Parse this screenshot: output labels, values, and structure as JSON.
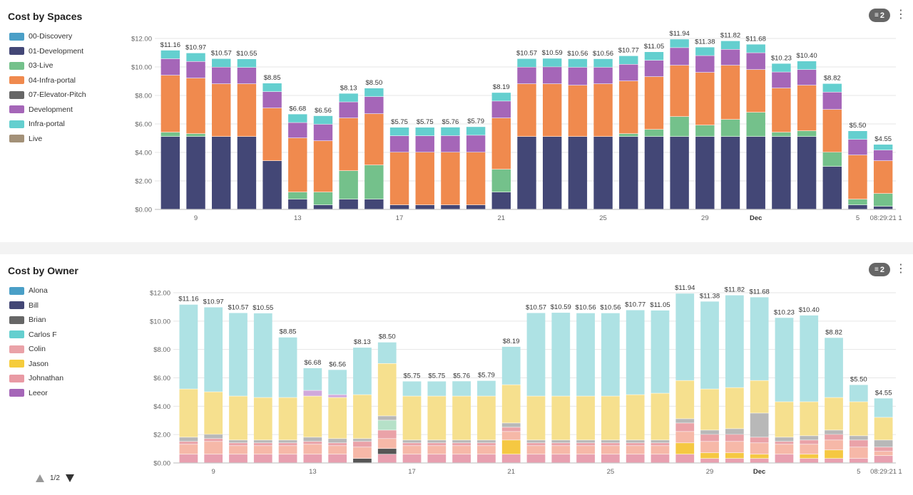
{
  "spaces_panel": {
    "title": "Cost by Spaces",
    "filter_count": "2",
    "legend": [
      {
        "name": "00-Discovery",
        "color": "#4a9fc7"
      },
      {
        "name": "01-Development",
        "color": "#434776"
      },
      {
        "name": "03-Live",
        "color": "#74c18b"
      },
      {
        "name": "04-Infra-portal",
        "color": "#f08a4e"
      },
      {
        "name": "07-Elevator-Pitch",
        "color": "#666666"
      },
      {
        "name": "Development",
        "color": "#a566b8"
      },
      {
        "name": "Infra-portal",
        "color": "#64cfcf"
      },
      {
        "name": "Live",
        "color": "#a39178"
      }
    ]
  },
  "owner_panel": {
    "title": "Cost by Owner",
    "filter_count": "2",
    "legend": [
      {
        "name": "Alona",
        "color": "#4a9fc7"
      },
      {
        "name": "Bill",
        "color": "#434776"
      },
      {
        "name": "Brian",
        "color": "#666666"
      },
      {
        "name": "Carlos F",
        "color": "#64cfcf"
      },
      {
        "name": "Colin",
        "color": "#eaa2a8"
      },
      {
        "name": "Jason",
        "color": "#f5cc3c"
      },
      {
        "name": "Johnathan",
        "color": "#e99aa4"
      },
      {
        "name": "Leeor",
        "color": "#a566b8"
      }
    ]
  },
  "pager": {
    "label": "1/2"
  },
  "chart_data": [
    {
      "type": "bar",
      "stacked": true,
      "ylim": [
        0,
        12
      ],
      "yticks": [
        "$0.00",
        "$2.00",
        "$4.00",
        "$6.00",
        "$8.00",
        "$10.00",
        "$12.00"
      ],
      "x_tick_labels": [
        {
          "index": 1,
          "label": "9"
        },
        {
          "index": 5,
          "label": "13"
        },
        {
          "index": 9,
          "label": "17"
        },
        {
          "index": 13,
          "label": "21"
        },
        {
          "index": 17,
          "label": "25"
        },
        {
          "index": 21,
          "label": "29"
        },
        {
          "index": 23,
          "label": "Dec"
        },
        {
          "index": 27,
          "label": "5"
        },
        {
          "index": 28,
          "label": "08:29:21"
        }
      ],
      "x_edge_label": "1",
      "totals": [
        "$11.16",
        "$10.97",
        "$10.57",
        "$10.55",
        "$8.85",
        "$6.68",
        "$6.56",
        "$8.13",
        "$8.50",
        "$5.75",
        "$5.75",
        "$5.76",
        "$5.79",
        "$8.19",
        "$10.57",
        "$10.59",
        "$10.56",
        "$10.56",
        "$10.77",
        "$11.05",
        "$11.94",
        "$11.38",
        "$11.82",
        "$11.68",
        "$10.23",
        "$10.40",
        "$8.82",
        "$5.50",
        "$4.55"
      ],
      "series": [
        {
          "color": "#434776",
          "values": [
            5.1,
            5.1,
            5.1,
            5.1,
            3.4,
            0.7,
            0.3,
            0.7,
            0.7,
            0.3,
            0.3,
            0.3,
            0.3,
            1.2,
            5.1,
            5.1,
            5.1,
            5.1,
            5.1,
            5.1,
            5.1,
            5.1,
            5.1,
            5.1,
            5.1,
            5.1,
            3.0,
            0.3,
            0.2
          ]
        },
        {
          "color": "#74c18b",
          "values": [
            0.3,
            0.2,
            0.0,
            0.0,
            0.0,
            0.5,
            0.9,
            2.0,
            2.4,
            0.0,
            0.0,
            0.0,
            0.0,
            1.6,
            0.0,
            0.0,
            0.0,
            0.0,
            0.2,
            0.5,
            1.4,
            0.8,
            1.2,
            1.7,
            0.3,
            0.4,
            1.0,
            0.4,
            0.9
          ]
        },
        {
          "color": "#f08a4e",
          "values": [
            4.0,
            3.9,
            3.7,
            3.7,
            3.7,
            3.8,
            3.6,
            3.7,
            3.6,
            3.7,
            3.7,
            3.7,
            3.7,
            3.6,
            3.7,
            3.7,
            3.6,
            3.7,
            3.7,
            3.7,
            3.6,
            3.7,
            3.8,
            3.0,
            3.1,
            3.2,
            3.0,
            3.1,
            2.3
          ]
        },
        {
          "color": "#a566b8",
          "values": [
            1.16,
            1.17,
            1.17,
            1.15,
            1.15,
            1.08,
            1.16,
            1.13,
            1.2,
            1.15,
            1.15,
            1.16,
            1.19,
            1.19,
            1.17,
            1.19,
            1.26,
            1.16,
            1.17,
            1.15,
            1.24,
            1.18,
            1.12,
            1.18,
            1.13,
            1.1,
            1.22,
            1.1,
            0.75
          ]
        },
        {
          "color": "#64cfcf",
          "values": [
            0.6,
            0.6,
            0.6,
            0.6,
            0.6,
            0.6,
            0.6,
            0.6,
            0.6,
            0.6,
            0.6,
            0.6,
            0.6,
            0.6,
            0.6,
            0.6,
            0.6,
            0.6,
            0.6,
            0.6,
            0.6,
            0.6,
            0.6,
            0.6,
            0.6,
            0.6,
            0.6,
            0.6,
            0.4
          ]
        }
      ]
    },
    {
      "type": "bar",
      "stacked": true,
      "ylim": [
        0,
        12
      ],
      "yticks": [
        "$0.00",
        "$2.00",
        "$4.00",
        "$6.00",
        "$8.00",
        "$10.00",
        "$12.00"
      ],
      "x_tick_labels": [
        {
          "index": 1,
          "label": "9"
        },
        {
          "index": 5,
          "label": "13"
        },
        {
          "index": 9,
          "label": "17"
        },
        {
          "index": 13,
          "label": "21"
        },
        {
          "index": 17,
          "label": "25"
        },
        {
          "index": 21,
          "label": "29"
        },
        {
          "index": 23,
          "label": "Dec"
        },
        {
          "index": 27,
          "label": "5"
        },
        {
          "index": 28,
          "label": "08:29:21"
        }
      ],
      "x_edge_label": "1",
      "totals": [
        "$11.16",
        "$10.97",
        "$10.57",
        "$10.55",
        "$8.85",
        "$6.68",
        "$6.56",
        "$8.13",
        "$8.50",
        "$5.75",
        "$5.75",
        "$5.76",
        "$5.79",
        "$8.19",
        "$10.57",
        "$10.59",
        "$10.56",
        "$10.56",
        "$10.77",
        "$11.05",
        "$11.94",
        "$11.38",
        "$11.82",
        "$11.68",
        "$10.23",
        "$10.40",
        "$8.82",
        "$5.50",
        "$4.55"
      ],
      "series": [
        {
          "color": "#e8a0b0",
          "values": [
            0.6,
            0.6,
            0.6,
            0.6,
            0.6,
            0.6,
            0.6,
            0.0,
            0.6,
            0.6,
            0.6,
            0.6,
            0.6,
            0.6,
            0.6,
            0.6,
            0.6,
            0.6,
            0.6,
            0.6,
            0.6,
            0.3,
            0.3,
            0.3,
            0.6,
            0.3,
            0.3,
            0.3,
            0.5
          ]
        },
        {
          "color": "#555555",
          "values": [
            0.0,
            0.0,
            0.0,
            0.0,
            0.0,
            0.0,
            0.0,
            0.3,
            0.4,
            0.0,
            0.0,
            0.0,
            0.0,
            0.0,
            0.0,
            0.0,
            0.0,
            0.0,
            0.0,
            0.0,
            0.0,
            0.0,
            0.0,
            0.0,
            0.0,
            0.0,
            0.0,
            0.0,
            0.0
          ]
        },
        {
          "color": "#f5c842",
          "values": [
            0.0,
            0.0,
            0.0,
            0.0,
            0.0,
            0.0,
            0.0,
            0.0,
            0.0,
            0.0,
            0.0,
            0.0,
            0.0,
            1.0,
            0.0,
            0.0,
            0.0,
            0.0,
            0.0,
            0.0,
            0.8,
            0.4,
            0.4,
            0.3,
            0.0,
            0.3,
            0.6,
            0.0,
            0.0
          ]
        },
        {
          "color": "#f6b8a8",
          "values": [
            0.7,
            0.9,
            0.6,
            0.6,
            0.6,
            0.7,
            0.6,
            0.8,
            0.7,
            0.6,
            0.6,
            0.6,
            0.6,
            0.6,
            0.6,
            0.6,
            0.6,
            0.6,
            0.6,
            0.6,
            0.8,
            0.8,
            0.8,
            0.8,
            0.7,
            0.7,
            0.7,
            0.8,
            0.3
          ]
        },
        {
          "color": "#eaa2a8",
          "values": [
            0.2,
            0.2,
            0.2,
            0.2,
            0.2,
            0.2,
            0.2,
            0.4,
            0.6,
            0.2,
            0.2,
            0.2,
            0.2,
            0.3,
            0.2,
            0.2,
            0.2,
            0.2,
            0.2,
            0.2,
            0.6,
            0.5,
            0.5,
            0.4,
            0.2,
            0.3,
            0.4,
            0.5,
            0.3
          ]
        },
        {
          "color": "#b6e1c8",
          "values": [
            0.0,
            0.0,
            0.0,
            0.0,
            0.0,
            0.0,
            0.0,
            0.0,
            0.7,
            0.0,
            0.0,
            0.0,
            0.0,
            0.0,
            0.0,
            0.0,
            0.0,
            0.0,
            0.0,
            0.0,
            0.0,
            0.0,
            0.0,
            0.0,
            0.0,
            0.0,
            0.0,
            0.0,
            0.0
          ]
        },
        {
          "color": "#b8b8b8",
          "values": [
            0.3,
            0.3,
            0.2,
            0.2,
            0.2,
            0.3,
            0.3,
            0.2,
            0.3,
            0.2,
            0.2,
            0.2,
            0.2,
            0.3,
            0.2,
            0.2,
            0.2,
            0.2,
            0.2,
            0.2,
            0.3,
            0.3,
            0.4,
            1.7,
            0.3,
            0.3,
            0.3,
            0.3,
            0.5
          ]
        },
        {
          "color": "#f6e08e",
          "values": [
            3.4,
            3.0,
            3.1,
            3.0,
            3.0,
            2.9,
            2.9,
            3.1,
            3.7,
            3.1,
            3.1,
            3.1,
            3.1,
            2.7,
            3.1,
            3.1,
            3.1,
            3.1,
            3.2,
            3.3,
            2.7,
            2.9,
            2.9,
            2.3,
            2.5,
            2.4,
            2.3,
            2.4,
            1.6
          ]
        },
        {
          "color": "#d0a8dc",
          "values": [
            0.0,
            0.0,
            0.0,
            0.0,
            0.0,
            0.4,
            0.2,
            0.0,
            0.0,
            0.0,
            0.0,
            0.0,
            0.0,
            0.0,
            0.0,
            0.0,
            0.0,
            0.0,
            0.0,
            0.0,
            0.0,
            0.0,
            0.0,
            0.0,
            0.0,
            0.0,
            0.0,
            0.0,
            0.0
          ]
        },
        {
          "color": "#aee2e4",
          "values": [
            5.96,
            5.97,
            5.87,
            5.95,
            4.25,
            1.58,
            1.76,
            3.33,
            1.5,
            1.05,
            1.05,
            1.06,
            1.09,
            2.69,
            5.87,
            5.89,
            5.86,
            5.86,
            5.97,
            5.85,
            6.14,
            6.18,
            6.52,
            5.88,
            5.93,
            6.1,
            4.22,
            1.2,
            1.35
          ]
        }
      ]
    }
  ]
}
